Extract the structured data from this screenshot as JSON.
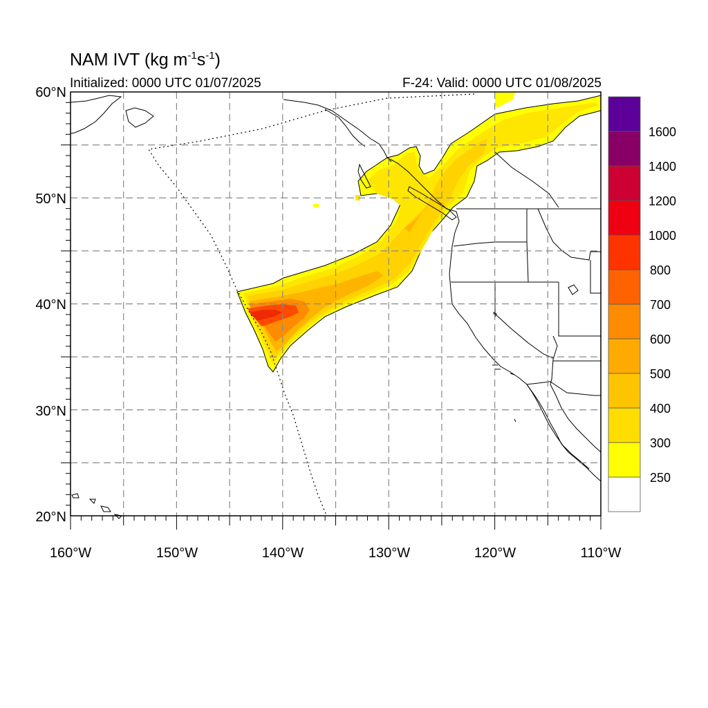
{
  "title": {
    "main": "NAM IVT (kg m",
    "sup1": "-1",
    "mid": "s",
    "sup2": "-1",
    "close": ")"
  },
  "initialized": "Initialized: 0000 UTC 01/07/2025",
  "valid": "F-24: Valid: 0000 UTC 01/08/2025",
  "map": {
    "lon_range": [
      -160,
      -110
    ],
    "lat_range": [
      20,
      60
    ],
    "grid_lon_step": 5,
    "grid_lat_step": 5,
    "lat_labels": [
      "60°N",
      "50°N",
      "40°N",
      "30°N",
      "20°N"
    ],
    "lon_labels": [
      "160°W",
      "150°W",
      "140°W",
      "130°W",
      "120°W",
      "110°W"
    ]
  },
  "colorbar": {
    "levels": [
      "250",
      "300",
      "400",
      "500",
      "600",
      "700",
      "800",
      "1000",
      "1200",
      "1400",
      "1600"
    ],
    "colors": [
      "#ffffff",
      "#ffff00",
      "#ffdd00",
      "#ffc400",
      "#ffaa00",
      "#ff8c00",
      "#ff6200",
      "#ff3300",
      "#ee0012",
      "#cc0033",
      "#880066",
      "#5c0099"
    ]
  },
  "plume_colors": {
    "c250": "#ffff00",
    "c300": "#ffe600",
    "c400": "#ffd200",
    "c500": "#ffb400",
    "c600": "#ff8c00",
    "c800": "#ff4a00",
    "c1000": "#ee2a00"
  }
}
